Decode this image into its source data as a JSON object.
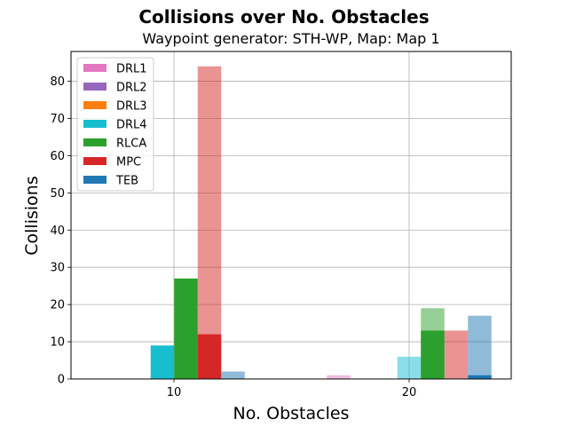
{
  "chart_data": {
    "type": "bar",
    "title": "Collisions over No. Obstacles",
    "subtitle": "Waypoint generator: STH-WP, Map: Map 1",
    "xlabel": "No. Obstacles",
    "ylabel": "Collisions",
    "categories": [
      "10",
      "20"
    ],
    "ylim": [
      0,
      88
    ],
    "yticks": [
      "0",
      "10",
      "20",
      "30",
      "40",
      "50",
      "60",
      "70",
      "80"
    ],
    "grid": true,
    "legend_position": "top-left",
    "series": [
      {
        "name": "DRL1",
        "color": "#e377c2",
        "values": [
          0,
          1
        ],
        "values_solid": [
          0,
          0
        ]
      },
      {
        "name": "DRL2",
        "color": "#9467bd",
        "values": [
          0,
          0
        ],
        "values_solid": [
          0,
          0
        ]
      },
      {
        "name": "DRL3",
        "color": "#ff7f0e",
        "values": [
          0,
          0
        ],
        "values_solid": [
          0,
          0
        ]
      },
      {
        "name": "DRL4",
        "color": "#17becf",
        "values": [
          9,
          6
        ],
        "values_solid": [
          9,
          0
        ]
      },
      {
        "name": "RLCA",
        "color": "#2ca02c",
        "values": [
          27,
          19
        ],
        "values_solid": [
          27,
          13
        ]
      },
      {
        "name": "MPC",
        "color": "#d62728",
        "values": [
          84,
          13
        ],
        "values_solid": [
          12,
          0
        ]
      },
      {
        "name": "TEB",
        "color": "#1f77b4",
        "values": [
          2,
          17
        ],
        "values_solid": [
          0,
          1
        ]
      }
    ]
  }
}
